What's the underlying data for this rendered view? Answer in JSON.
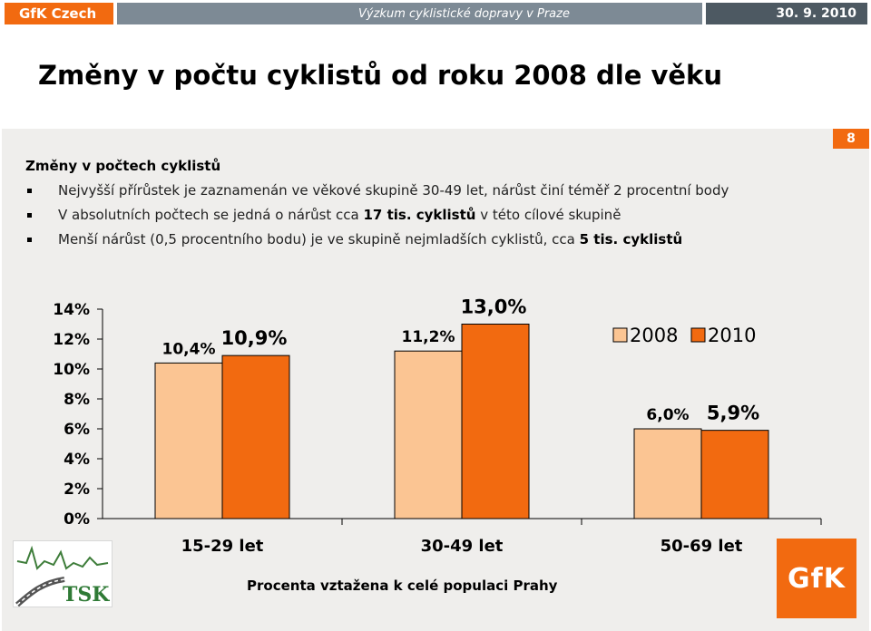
{
  "header": {
    "brand": "GfK Czech",
    "project": "Výzkum cyklistické dopravy v Praze",
    "date": "30. 9. 2010"
  },
  "title": "Změny v počtu cyklistů od roku 2008 dle věku",
  "slide_number": "8",
  "summary": {
    "heading": "Změny v počtech cyklistů",
    "bullets": [
      {
        "pre": "Nejvyšší přírůstek je zaznamenán ve věkové skupině 30-49 let, nárůst činí téměř 2 procentní body",
        "bold": "",
        "post": ""
      },
      {
        "pre": "V absolutních počtech se jedná o nárůst cca ",
        "bold": "17 tis. cyklistů",
        "post": " v této cílové skupině"
      },
      {
        "pre": "Menší nárůst (0,5 procentního bodu) je ve skupině nejmladších cyklistů, cca ",
        "bold": "5 tis. cyklistů",
        "post": ""
      }
    ]
  },
  "chart_data": {
    "type": "bar",
    "categories": [
      "15-29 let",
      "30-49 let",
      "50-69 let"
    ],
    "series": [
      {
        "name": "2008",
        "values": [
          10.4,
          11.2,
          6.0
        ],
        "labels": [
          "10,4%",
          "11,2%",
          "6,0%"
        ],
        "color": "#fbc593"
      },
      {
        "name": "2010",
        "values": [
          10.9,
          13.0,
          5.9
        ],
        "labels": [
          "10,9%",
          "13,0%",
          "5,9%"
        ],
        "color": "#f26a10"
      }
    ],
    "yticks": [
      0,
      2,
      4,
      6,
      8,
      10,
      12,
      14
    ],
    "ytick_labels": [
      "0%",
      "2%",
      "4%",
      "6%",
      "8%",
      "10%",
      "12%",
      "14%"
    ],
    "ylim": [
      0,
      14
    ],
    "grid": false,
    "legend_position": "top-right"
  },
  "footnote": "Procenta vztažena k celé populaci Prahy",
  "logos": {
    "partner": "TSK",
    "company": "GfK"
  },
  "colors": {
    "brand_orange": "#f26a10",
    "series_2008": "#fbc593",
    "series_2010": "#f26a10",
    "panel_bg": "#efeeec"
  }
}
